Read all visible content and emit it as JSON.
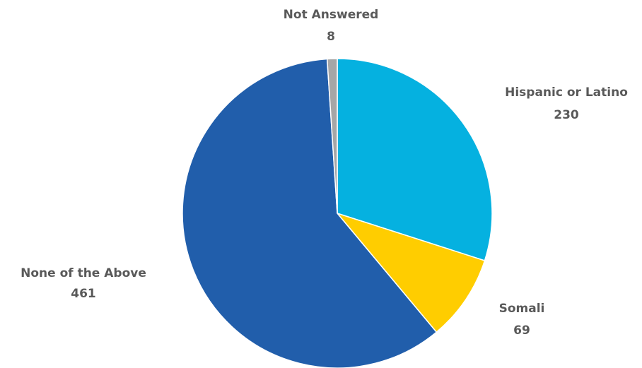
{
  "chart_data": {
    "type": "pie",
    "title": "",
    "slices": [
      {
        "label": "Hispanic or Latino",
        "value": 230,
        "value_label": "230",
        "color": "#05B1E0"
      },
      {
        "label": "Somali",
        "value": 69,
        "value_label": "69",
        "color": "#FFCD00"
      },
      {
        "label": "None of the Above",
        "value": 461,
        "value_label": "461",
        "color": "#215EAB"
      },
      {
        "label": "Not Answered",
        "value": 8,
        "value_label": "8",
        "color": "#A6A6A6"
      }
    ],
    "start_angle": "12 o'clock",
    "direction": "clockwise",
    "legend": "none",
    "label_color": "#595959"
  }
}
